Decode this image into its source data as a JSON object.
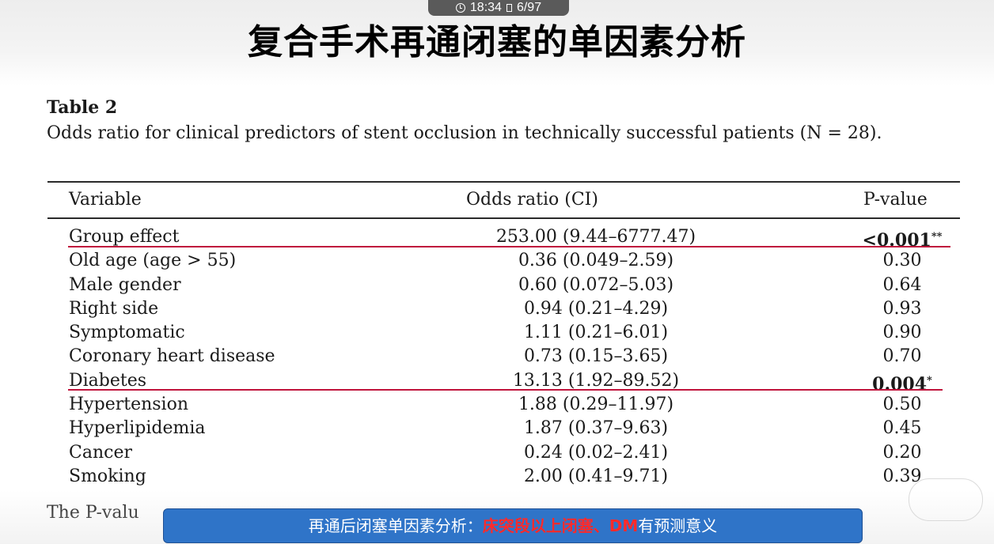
{
  "status": {
    "time": "18:34",
    "page": "6/97",
    "icons": [
      "clock-icon",
      "page-icon"
    ]
  },
  "slide": {
    "title": "复合手术再通闭塞的单因素分析"
  },
  "table": {
    "label": "Table 2",
    "caption": "Odds ratio for clinical predictors of stent occlusion in technically successful patients (N = 28).",
    "headers": {
      "variable": "Variable",
      "odds_ratio": "Odds ratio (CI)",
      "p_value": "P-value"
    },
    "rows": [
      {
        "variable": "Group effect",
        "odds_ratio": "253.00 (9.44–6777.47)",
        "p_value": "<0.001",
        "mark": "**"
      },
      {
        "variable": "Old age (age > 55)",
        "odds_ratio": "0.36 (0.049–2.59)",
        "p_value": "0.30",
        "mark": ""
      },
      {
        "variable": "Male gender",
        "odds_ratio": "0.60 (0.072–5.03)",
        "p_value": "0.64",
        "mark": ""
      },
      {
        "variable": "Right side",
        "odds_ratio": "0.94 (0.21–4.29)",
        "p_value": "0.93",
        "mark": ""
      },
      {
        "variable": "Symptomatic",
        "odds_ratio": "1.11 (0.21–6.01)",
        "p_value": "0.90",
        "mark": ""
      },
      {
        "variable": "Coronary heart disease",
        "odds_ratio": "0.73 (0.15–3.65)",
        "p_value": "0.70",
        "mark": ""
      },
      {
        "variable": "Diabetes",
        "odds_ratio": "13.13 (1.92–89.52)",
        "p_value": "0.004",
        "mark": "*"
      },
      {
        "variable": "Hypertension",
        "odds_ratio": "1.88 (0.29–11.97)",
        "p_value": "0.50",
        "mark": ""
      },
      {
        "variable": "Hyperlipidemia",
        "odds_ratio": "1.87 (0.37–9.63)",
        "p_value": "0.45",
        "mark": ""
      },
      {
        "variable": "Cancer",
        "odds_ratio": "0.24 (0.02–2.41)",
        "p_value": "0.20",
        "mark": ""
      },
      {
        "variable": "Smoking",
        "odds_ratio": "2.00 (0.41–9.71)",
        "p_value": "0.39",
        "mark": ""
      }
    ],
    "footnote": "The P-valu"
  },
  "subtitle": {
    "prefix": "再通后闭塞单因素分析：",
    "highlight": "床突段以上闭塞、DM",
    "suffix": "有预测意义"
  },
  "colors": {
    "title_text": "#000000",
    "underline": "#c0143c",
    "subtitle_bg": "#2f74c8",
    "subtitle_highlight": "#ff2a2a",
    "status_bg": "#5a5a5a"
  }
}
